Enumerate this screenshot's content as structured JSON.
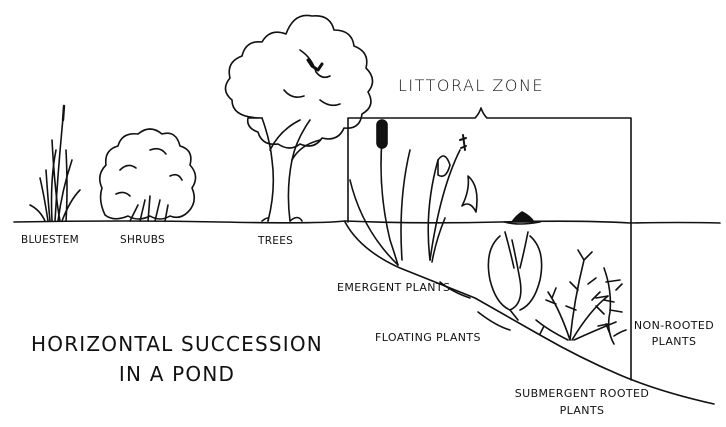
{
  "diagram": {
    "title_line1": "HORIZONTAL SUCCESSION",
    "title_line2": "IN A POND",
    "zone_label": "LITTORAL ZONE",
    "labels": {
      "bluestem": "BLUESTEM",
      "shrubs": "SHRUBS",
      "trees": "TREES",
      "emergent": "EMERGENT PLANTS",
      "floating": "FLOATING PLANTS",
      "nonrooted_line1": "NON-ROOTED",
      "nonrooted_line2": "PLANTS",
      "submergent_line1": "SUBMERGENT ROOTED",
      "submergent_line2": "PLANTS"
    }
  }
}
